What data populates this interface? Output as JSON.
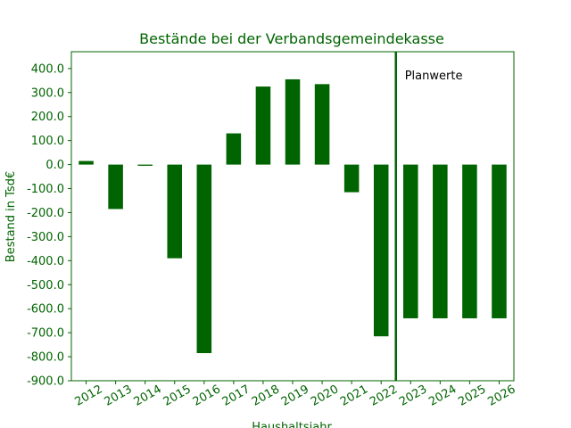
{
  "chart_data": {
    "type": "bar",
    "title": "Bestände bei der Verbandsgemeindekasse",
    "xlabel": "Haushaltsjahr",
    "ylabel": "Bestand in Tsd€",
    "categories": [
      "2012",
      "2013",
      "2014",
      "2015",
      "2016",
      "2017",
      "2018",
      "2019",
      "2020",
      "2021",
      "2022",
      "2023",
      "2024",
      "2025",
      "2026"
    ],
    "values": [
      15,
      -185,
      -5,
      -390,
      -785,
      130,
      325,
      355,
      335,
      -115,
      -715,
      -640,
      -640,
      -640,
      -640
    ],
    "ylim": [
      -900,
      470
    ],
    "yticks": [
      -900,
      -800,
      -700,
      -600,
      -500,
      -400,
      -300,
      -200,
      -100,
      0,
      100,
      200,
      300,
      400
    ],
    "ytick_labels": [
      "-900.0",
      "-800.0",
      "-700.0",
      "-600.0",
      "-500.0",
      "-400.0",
      "-300.0",
      "-200.0",
      "-100.0",
      "0.0",
      "100.0",
      "200.0",
      "300.0",
      "400.0"
    ],
    "grid": false,
    "divider_between": [
      "2022",
      "2023"
    ],
    "annotation": "Planwerte",
    "colors": {
      "bar": "#006400",
      "axis": "#006400",
      "text": "#006400",
      "annotation": "#000000"
    }
  }
}
